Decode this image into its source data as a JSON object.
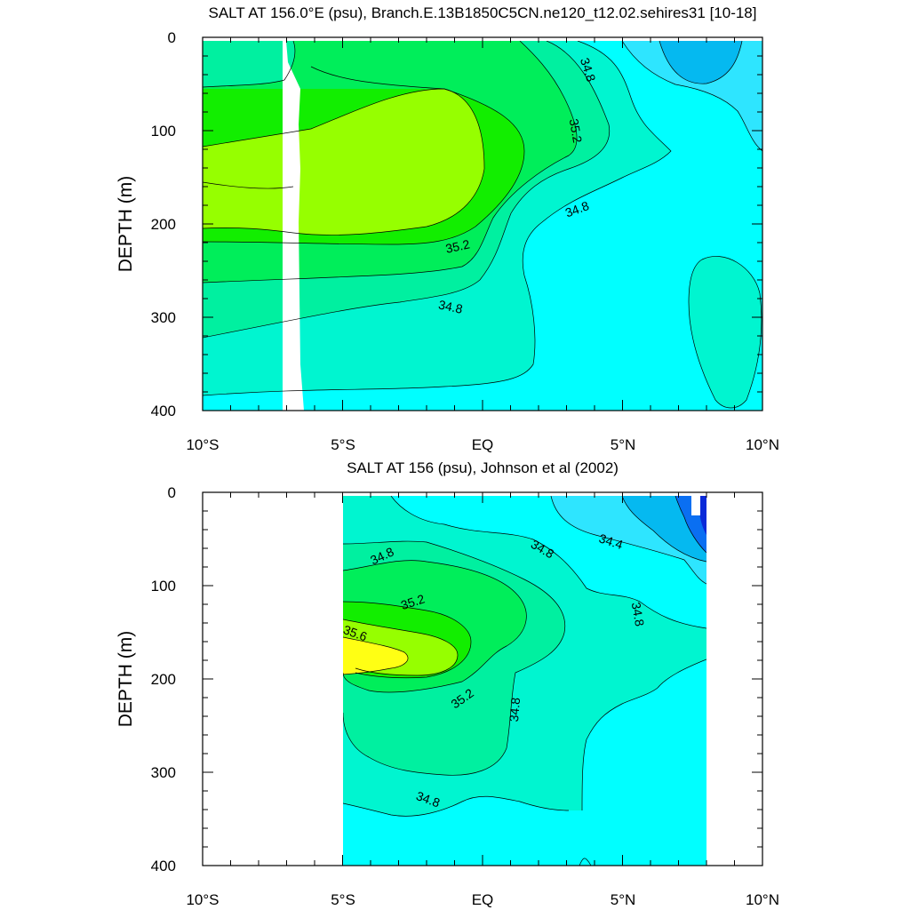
{
  "chart_data": [
    {
      "type": "contour",
      "title": "SALT AT 156.0°E (psu), Branch.E.13B1850C5CN.ne120_t12.02.sehires31 [10-18]",
      "ylabel": "DEPTH (m)",
      "xlabel": "",
      "x_ticks": [
        "10°S",
        "5°S",
        "EQ",
        "5°N",
        "10°N"
      ],
      "y_ticks": [
        "0",
        "100",
        "200",
        "300",
        "400"
      ],
      "xlim": [
        -10,
        10
      ],
      "ylim": [
        400,
        0
      ],
      "contour_labels": [
        "34.8",
        "35.2",
        "34.8",
        "35.2",
        "34.8"
      ],
      "level_colors": {
        "34.2": "#05b9f0",
        "34.4": "#2ee5ff",
        "34.6": "#00ffff",
        "34.8": "#00f5d0",
        "35.0": "#00f0a0",
        "35.2": "#00ee5a",
        "35.4": "#12ee00",
        "35.6": "#96ff00",
        "35.8": "#ffff14"
      }
    },
    {
      "type": "contour",
      "title": "SALT AT 156 (psu), Johnson et al (2002)",
      "ylabel": "DEPTH (m)",
      "xlabel": "",
      "x_ticks": [
        "10°S",
        "5°S",
        "EQ",
        "5°N",
        "10°N"
      ],
      "y_ticks": [
        "0",
        "100",
        "200",
        "300",
        "400"
      ],
      "xlim": [
        -10,
        10
      ],
      "ylim": [
        400,
        0
      ],
      "data_extent_lon": [
        -5,
        8
      ],
      "contour_labels": [
        "34.8",
        "34.8",
        "34.4",
        "35.2",
        "34.8",
        "35.6",
        "35.2",
        "34.8",
        "34.8"
      ],
      "level_colors": {
        "33.8": "#0a2ad8",
        "34.0": "#0a6ff2",
        "34.2": "#05b9f0",
        "34.4": "#2ee5ff",
        "34.6": "#00ffff",
        "34.8": "#00f5d0",
        "35.0": "#00f0a0",
        "35.2": "#00ee5a",
        "35.4": "#12ee00",
        "35.6": "#96ff00",
        "35.8": "#ffff14"
      }
    }
  ]
}
